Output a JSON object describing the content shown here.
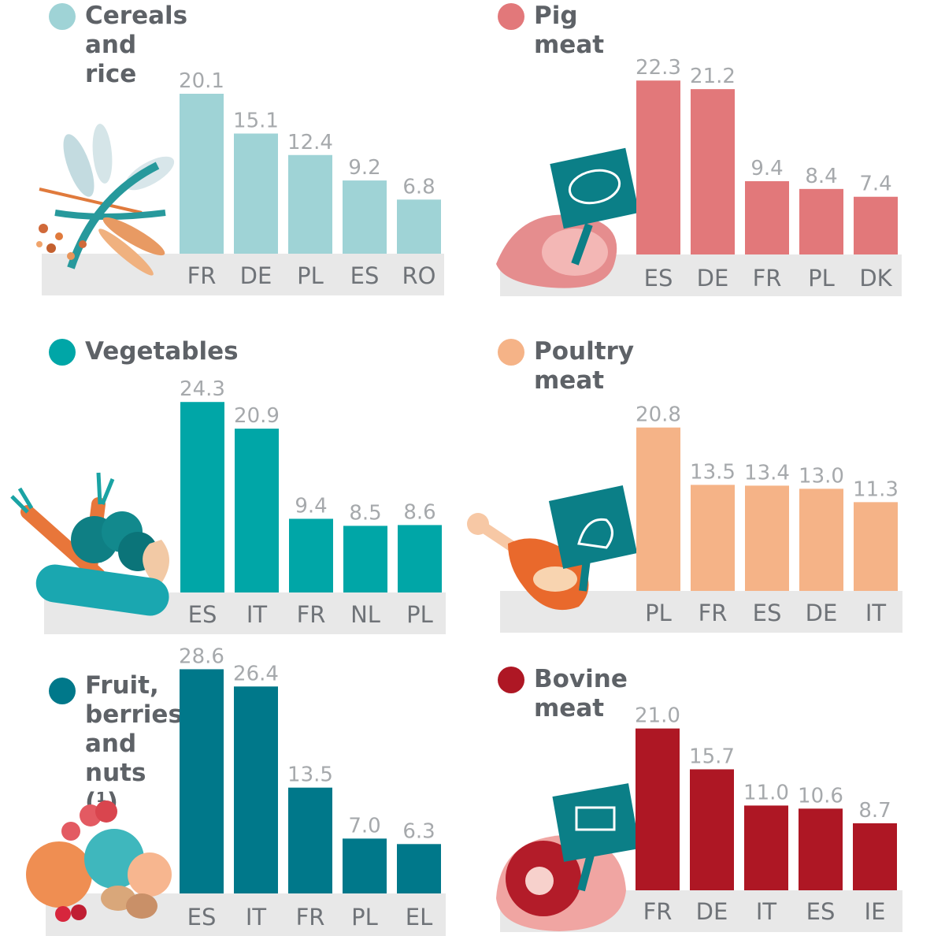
{
  "chart_data": [
    {
      "type": "bar",
      "title": "Cereals and rice",
      "color": "#9fd3d6",
      "categories": [
        "FR",
        "DE",
        "PL",
        "ES",
        "RO"
      ],
      "values": [
        20.1,
        15.1,
        12.4,
        9.2,
        6.8
      ],
      "value_labels": [
        "20.1",
        "15.1",
        "12.4",
        "9.2",
        "6.8"
      ],
      "ylim": [
        0,
        30
      ],
      "grid": false
    },
    {
      "type": "bar",
      "title": "Pig meat",
      "color": "#e2787a",
      "categories": [
        "ES",
        "DE",
        "FR",
        "PL",
        "DK"
      ],
      "values": [
        22.3,
        21.2,
        9.4,
        8.4,
        7.4
      ],
      "value_labels": [
        "22.3",
        "21.2",
        "9.4",
        "8.4",
        "7.4"
      ],
      "ylim": [
        0,
        30
      ],
      "grid": false
    },
    {
      "type": "bar",
      "title": "Vegetables",
      "color": "#00a6a7",
      "categories": [
        "ES",
        "IT",
        "FR",
        "NL",
        "PL"
      ],
      "values": [
        24.3,
        20.9,
        9.4,
        8.5,
        8.6
      ],
      "value_labels": [
        "24.3",
        "20.9",
        "9.4",
        "8.5",
        "8.6"
      ],
      "ylim": [
        0,
        30
      ],
      "grid": false
    },
    {
      "type": "bar",
      "title": "Poultry meat",
      "color": "#f5b387",
      "categories": [
        "PL",
        "FR",
        "ES",
        "DE",
        "IT"
      ],
      "values": [
        20.8,
        13.5,
        13.4,
        13.0,
        11.3
      ],
      "value_labels": [
        "20.8",
        "13.5",
        "13.4",
        "13.0",
        "11.3"
      ],
      "ylim": [
        0,
        30
      ],
      "grid": false
    },
    {
      "type": "bar",
      "title": "Fruit, berries and nuts (¹)",
      "title_lines": [
        "Fruit,",
        "berries",
        "and",
        "nuts (¹)"
      ],
      "color": "#00788a",
      "categories": [
        "ES",
        "IT",
        "FR",
        "PL",
        "EL"
      ],
      "values": [
        28.6,
        26.4,
        13.5,
        7.0,
        6.3
      ],
      "value_labels": [
        "28.6",
        "26.4",
        "13.5",
        "7.0",
        "6.3"
      ],
      "ylim": [
        0,
        30
      ],
      "grid": false
    },
    {
      "type": "bar",
      "title": "Bovine meat",
      "color": "#ae1724",
      "categories": [
        "FR",
        "DE",
        "IT",
        "ES",
        "IE"
      ],
      "values": [
        21.0,
        15.7,
        11.0,
        10.6,
        8.7
      ],
      "value_labels": [
        "21.0",
        "15.7",
        "11.0",
        "10.6",
        "8.7"
      ],
      "ylim": [
        0,
        30
      ],
      "grid": false
    }
  ],
  "icons": [
    "cereal-icon",
    "pig-sign-icon",
    "vegetables-icon",
    "rooster-sign-icon",
    "fruit-icon",
    "cow-sign-icon"
  ],
  "colors": {
    "strip": "#e8e8e8",
    "value_label": "#a6a9ac",
    "category_label": "#6f7378",
    "title": "#5e6267",
    "sign": "#0b7f87"
  }
}
